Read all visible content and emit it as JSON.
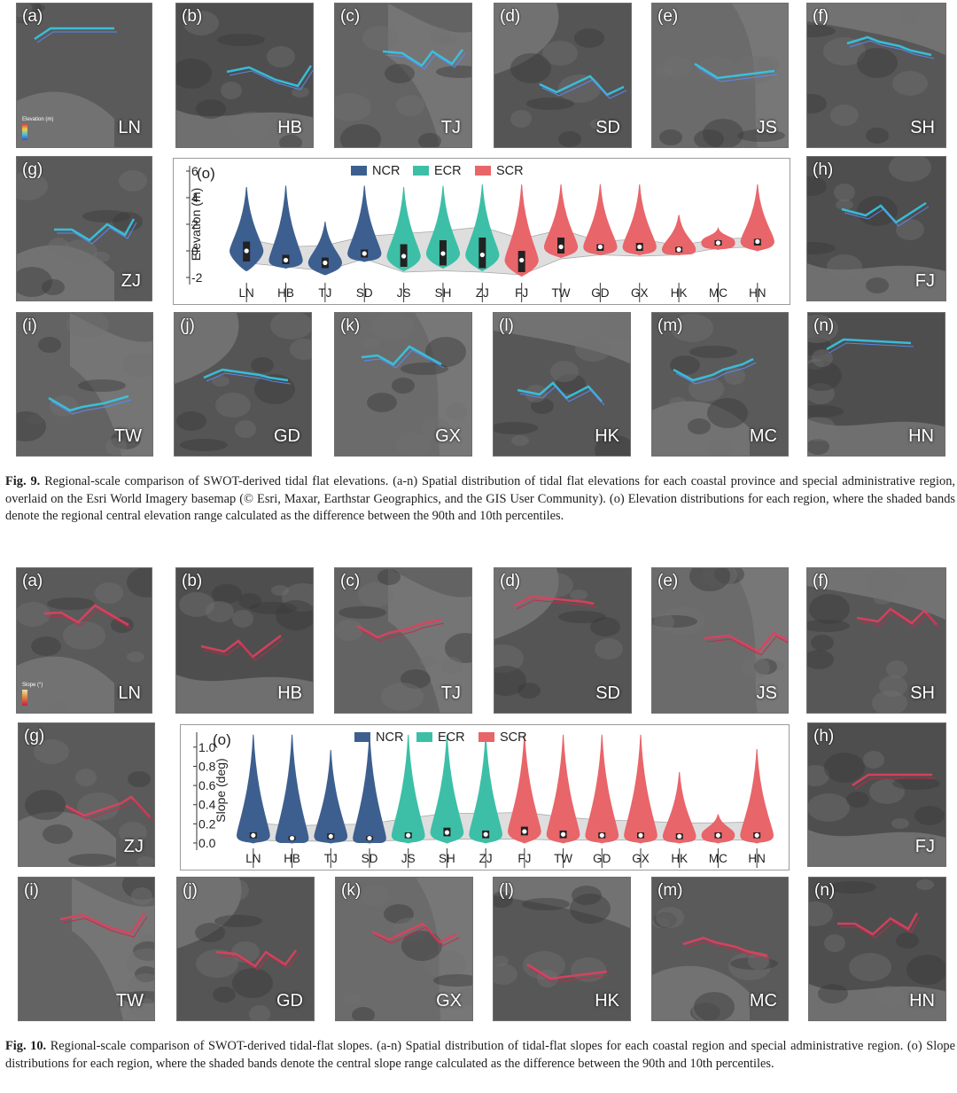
{
  "colors": {
    "NCR": "#3d5f8f",
    "ECR": "#3dbfa7",
    "SCR": "#e8656a",
    "band": "#d9d9d9"
  },
  "fig9": {
    "panels": [
      {
        "label": "(a)",
        "region": "LN",
        "legend": "Elevation (m)"
      },
      {
        "label": "(b)",
        "region": "HB"
      },
      {
        "label": "(c)",
        "region": "TJ"
      },
      {
        "label": "(d)",
        "region": "SD"
      },
      {
        "label": "(e)",
        "region": "JS"
      },
      {
        "label": "(f)",
        "region": "SH"
      },
      {
        "label": "(g)",
        "region": "ZJ"
      },
      {
        "label": "(h)",
        "region": "FJ"
      },
      {
        "label": "(i)",
        "region": "TW"
      },
      {
        "label": "(j)",
        "region": "GD"
      },
      {
        "label": "(k)",
        "region": "GX"
      },
      {
        "label": "(l)",
        "region": "HK"
      },
      {
        "label": "(m)",
        "region": "MC"
      },
      {
        "label": "(n)",
        "region": "HN"
      }
    ],
    "caption_label": "Fig. 9.",
    "caption_text": "Regional-scale comparison of SWOT-derived tidal flat elevations. (a-n) Spatial distribution of tidal flat elevations for each coastal province and special administrative region, overlaid on the Esri World Imagery basemap (© Esri, Maxar, Earthstar Geographics, and the GIS User Community). (o) Elevation distributions for each region, where the shaded bands denote the regional central elevation range calculated as the difference between the 90th and 10th percentiles."
  },
  "fig10": {
    "panels": [
      {
        "label": "(a)",
        "region": "LN",
        "legend": "Slope (°)"
      },
      {
        "label": "(b)",
        "region": "HB"
      },
      {
        "label": "(c)",
        "region": "TJ"
      },
      {
        "label": "(d)",
        "region": "SD"
      },
      {
        "label": "(e)",
        "region": "JS"
      },
      {
        "label": "(f)",
        "region": "SH"
      },
      {
        "label": "(g)",
        "region": "ZJ"
      },
      {
        "label": "(h)",
        "region": "FJ"
      },
      {
        "label": "(i)",
        "region": "TW"
      },
      {
        "label": "(j)",
        "region": "GD"
      },
      {
        "label": "(k)",
        "region": "GX"
      },
      {
        "label": "(l)",
        "region": "HK"
      },
      {
        "label": "(m)",
        "region": "MC"
      },
      {
        "label": "(n)",
        "region": "HN"
      }
    ],
    "caption_label": "Fig. 10.",
    "caption_text": "Regional-scale comparison of SWOT-derived tidal-flat slopes. (a-n) Spatial distribution of tidal-flat slopes for each coastal region and special administrative region. (o) Slope distributions for each region, where the shaded bands denote the central slope range calculated as the difference between the 90th and 10th percentiles."
  },
  "chart_data": [
    {
      "type": "violin",
      "panel_label": "(o)",
      "ylabel": "Elevation (m)",
      "ylim": [
        -2,
        6
      ],
      "yticks": [
        6,
        4,
        2,
        0,
        -2
      ],
      "legend": [
        "NCR",
        "ECR",
        "SCR"
      ],
      "legend_position": "top-center",
      "categories": [
        "LN",
        "HB",
        "TJ",
        "SD",
        "JS",
        "SH",
        "ZJ",
        "FJ",
        "TW",
        "GD",
        "GX",
        "HK",
        "MC",
        "HN"
      ],
      "groups": [
        "NCR",
        "NCR",
        "NCR",
        "NCR",
        "ECR",
        "ECR",
        "ECR",
        "SCR",
        "SCR",
        "SCR",
        "SCR",
        "SCR",
        "SCR",
        "SCR"
      ],
      "median": [
        0.0,
        -0.7,
        -0.9,
        -0.2,
        -0.4,
        -0.2,
        -0.3,
        -0.7,
        0.3,
        0.3,
        0.3,
        0.1,
        0.6,
        0.7
      ],
      "q1": [
        -0.8,
        -1.0,
        -1.3,
        -0.5,
        -1.2,
        -1.1,
        -1.3,
        -1.6,
        -0.2,
        0.0,
        0.0,
        -0.1,
        0.4,
        0.4
      ],
      "q3": [
        0.7,
        -0.3,
        -0.5,
        0.1,
        0.5,
        0.8,
        1.0,
        0.0,
        1.0,
        0.5,
        0.6,
        0.3,
        0.8,
        0.9
      ],
      "max": [
        4.8,
        4.9,
        2.2,
        4.9,
        4.8,
        4.9,
        5.0,
        5.0,
        5.0,
        5.0,
        5.0,
        2.7,
        1.7,
        5.0
      ],
      "min": [
        -1.5,
        -1.3,
        -1.8,
        -0.8,
        -1.5,
        -1.3,
        -1.5,
        -1.9,
        -0.5,
        -0.3,
        -0.3,
        -0.3,
        0.1,
        0.0
      ],
      "band_upper": [
        0.9,
        0.3,
        0.4,
        1.1,
        1.3,
        1.5,
        1.8,
        0.9,
        1.6,
        0.7,
        0.9,
        0.4,
        0.9,
        1.0
      ],
      "band_lower": [
        -0.9,
        -1.2,
        -1.5,
        -0.6,
        -1.6,
        -1.5,
        -1.6,
        -1.8,
        -0.6,
        -0.3,
        -0.4,
        -0.3,
        0.2,
        0.3
      ]
    },
    {
      "type": "violin",
      "panel_label": "(o)",
      "ylabel": "Slope (deg)",
      "ylim": [
        0.0,
        1.1
      ],
      "yticks": [
        "1.0",
        "0.8",
        "0.6",
        "0.4",
        "0.2",
        "0.0"
      ],
      "legend": [
        "NCR",
        "ECR",
        "SCR"
      ],
      "legend_position": "top-center",
      "categories": [
        "LN",
        "HB",
        "TJ",
        "SD",
        "JS",
        "SH",
        "ZJ",
        "FJ",
        "TW",
        "GD",
        "GX",
        "HK",
        "MC",
        "HN"
      ],
      "groups": [
        "NCR",
        "NCR",
        "NCR",
        "NCR",
        "ECR",
        "ECR",
        "ECR",
        "SCR",
        "SCR",
        "SCR",
        "SCR",
        "SCR",
        "SCR",
        "SCR"
      ],
      "median": [
        0.08,
        0.05,
        0.07,
        0.05,
        0.08,
        0.11,
        0.09,
        0.12,
        0.09,
        0.08,
        0.08,
        0.07,
        0.08,
        0.08
      ],
      "q1": [
        0.05,
        0.03,
        0.04,
        0.03,
        0.05,
        0.07,
        0.05,
        0.08,
        0.05,
        0.05,
        0.05,
        0.04,
        0.05,
        0.05
      ],
      "q3": [
        0.11,
        0.07,
        0.1,
        0.07,
        0.11,
        0.16,
        0.13,
        0.17,
        0.13,
        0.11,
        0.11,
        0.1,
        0.11,
        0.11
      ],
      "max": [
        1.13,
        1.13,
        0.97,
        1.13,
        1.13,
        1.13,
        1.13,
        1.13,
        1.13,
        1.13,
        1.13,
        0.74,
        0.3,
        0.98
      ],
      "min": [
        0.0,
        0.0,
        0.0,
        0.0,
        0.0,
        0.0,
        0.0,
        0.0,
        0.0,
        0.0,
        0.0,
        0.0,
        0.0,
        0.0
      ],
      "band_upper": [
        0.21,
        0.18,
        0.19,
        0.2,
        0.26,
        0.31,
        0.31,
        0.32,
        0.27,
        0.24,
        0.23,
        0.21,
        0.21,
        0.22
      ],
      "band_lower": [
        0.03,
        0.02,
        0.02,
        0.02,
        0.03,
        0.04,
        0.04,
        0.04,
        0.03,
        0.03,
        0.03,
        0.03,
        0.03,
        0.03
      ]
    }
  ]
}
